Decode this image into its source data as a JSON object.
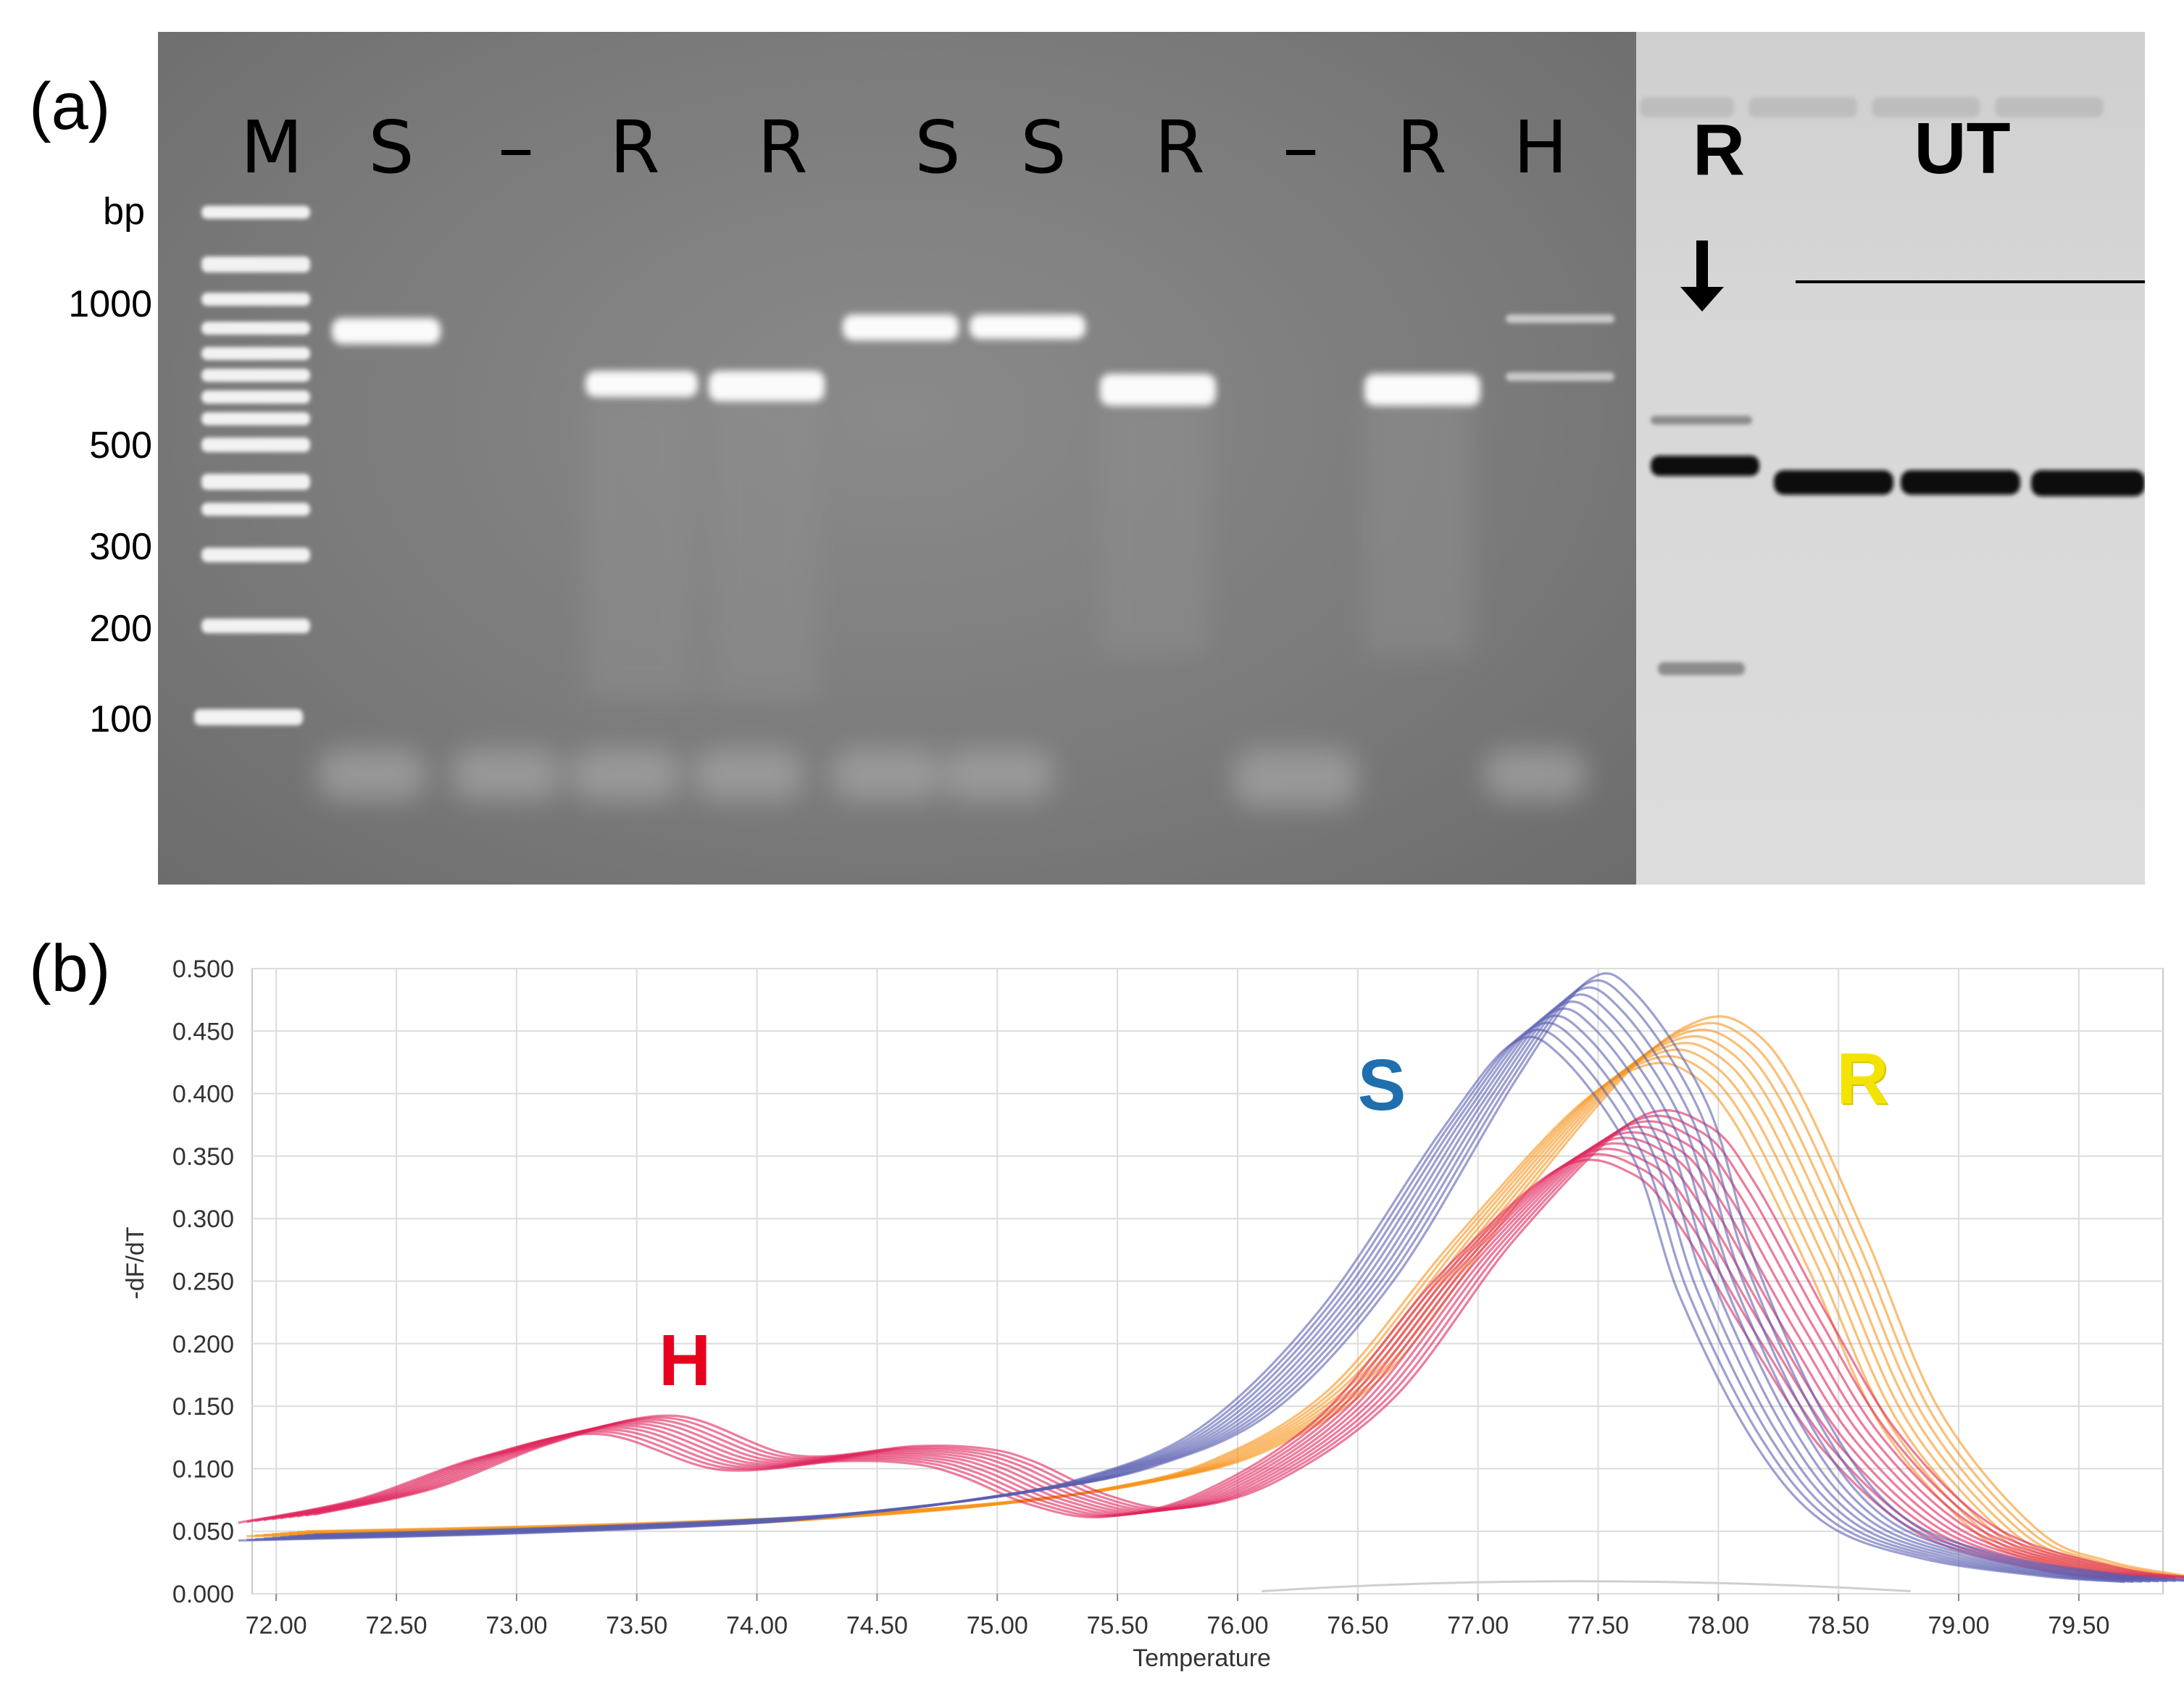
{
  "figure": {
    "panel_a_label": "(a)",
    "panel_b_label": "(b)"
  },
  "gel": {
    "bp_unit": "bp",
    "ladder_labels": [
      "1000",
      "500",
      "300",
      "200",
      "100"
    ],
    "lane_labels": [
      "M",
      "S",
      "–",
      "R",
      "R",
      "S",
      "S",
      "R",
      "–",
      "R",
      "H"
    ],
    "right_panel": {
      "lane_label_r": "R",
      "group_label": "UT",
      "arrow_icon": "down-arrow-icon"
    }
  },
  "chart_data": {
    "type": "line",
    "xlabel": "Temperature",
    "ylabel": "-dF/dT",
    "xlim": [
      71.9,
      79.85
    ],
    "ylim": [
      0,
      0.5
    ],
    "x_ticks": [
      "72.00",
      "72.50",
      "73.00",
      "73.50",
      "74.00",
      "74.50",
      "75.00",
      "75.50",
      "76.00",
      "76.50",
      "77.00",
      "77.50",
      "78.00",
      "78.50",
      "79.00",
      "79.50"
    ],
    "y_ticks": [
      "0.000",
      "0.050",
      "0.100",
      "0.150",
      "0.200",
      "0.250",
      "0.300",
      "0.350",
      "0.400",
      "0.450",
      "0.500"
    ],
    "grid": true,
    "annotations": [
      {
        "text": "S",
        "color": "#1f6fae",
        "x": 76.6,
        "y": 0.405
      },
      {
        "text": "R",
        "color": "#f2e400",
        "x": 78.6,
        "y": 0.41
      },
      {
        "text": "H",
        "color": "#e8001c",
        "x": 73.7,
        "y": 0.185
      }
    ],
    "series": [
      {
        "color": "#5a5fb0",
        "x": [
          72.0,
          73.0,
          74.0,
          74.5,
          75.0,
          75.5,
          76.0,
          76.5,
          77.0,
          77.3,
          77.5,
          77.8,
          78.0,
          78.3,
          78.6,
          79.0,
          79.5,
          79.85
        ],
        "values": [
          0.045,
          0.05,
          0.058,
          0.066,
          0.078,
          0.097,
          0.14,
          0.24,
          0.39,
          0.465,
          0.455,
          0.37,
          0.25,
          0.13,
          0.06,
          0.03,
          0.015,
          0.01
        ],
        "copies": 10
      },
      {
        "color": "#f7941d",
        "x": [
          72.0,
          73.0,
          74.0,
          74.5,
          75.0,
          75.5,
          76.0,
          76.5,
          77.0,
          77.5,
          77.8,
          78.0,
          78.2,
          78.5,
          78.8,
          79.2,
          79.5,
          79.85
        ],
        "values": [
          0.048,
          0.052,
          0.058,
          0.064,
          0.072,
          0.085,
          0.11,
          0.17,
          0.29,
          0.4,
          0.44,
          0.435,
          0.39,
          0.27,
          0.14,
          0.05,
          0.025,
          0.013
        ],
        "copies": 8
      },
      {
        "color": "#e0245c",
        "x": [
          72.0,
          72.5,
          73.0,
          73.5,
          74.0,
          74.5,
          74.8,
          75.0,
          75.3,
          75.6,
          76.0,
          76.5,
          77.0,
          77.5,
          77.8,
          78.0,
          78.3,
          78.6,
          79.0,
          79.5,
          79.85
        ],
        "values": [
          0.06,
          0.08,
          0.115,
          0.135,
          0.105,
          0.112,
          0.11,
          0.1,
          0.075,
          0.065,
          0.085,
          0.15,
          0.27,
          0.36,
          0.355,
          0.31,
          0.21,
          0.12,
          0.05,
          0.02,
          0.012
        ],
        "copies": 10
      }
    ]
  }
}
